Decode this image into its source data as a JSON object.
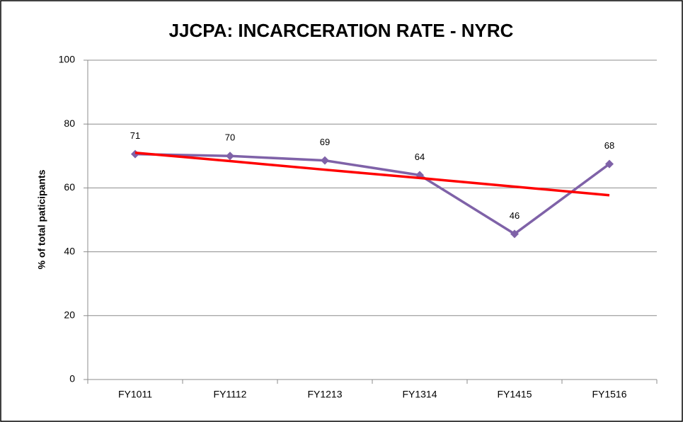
{
  "chart_data": {
    "type": "line",
    "title": "JJCPA: INCARCERATION RATE - NYRC",
    "y_label": "% of total paticipants",
    "categories": [
      "FY1011",
      "FY1112",
      "FY1213",
      "FY1314",
      "FY1415",
      "FY1516"
    ],
    "series": [
      {
        "color": "#7f62a8",
        "marker": "diamond",
        "values": [
          70.6,
          70.0,
          68.6,
          64.0,
          45.6,
          67.5
        ],
        "value_labels": [
          "71",
          "70",
          "69",
          "64",
          "46",
          "68"
        ]
      },
      {
        "color": "#ff0000",
        "values": [
          71.0,
          68.4,
          65.7,
          63.1,
          60.4,
          57.7
        ]
      }
    ],
    "ylim": [
      0,
      100
    ],
    "yticks": [
      0,
      20,
      40,
      60,
      80,
      100
    ],
    "grid": true
  }
}
